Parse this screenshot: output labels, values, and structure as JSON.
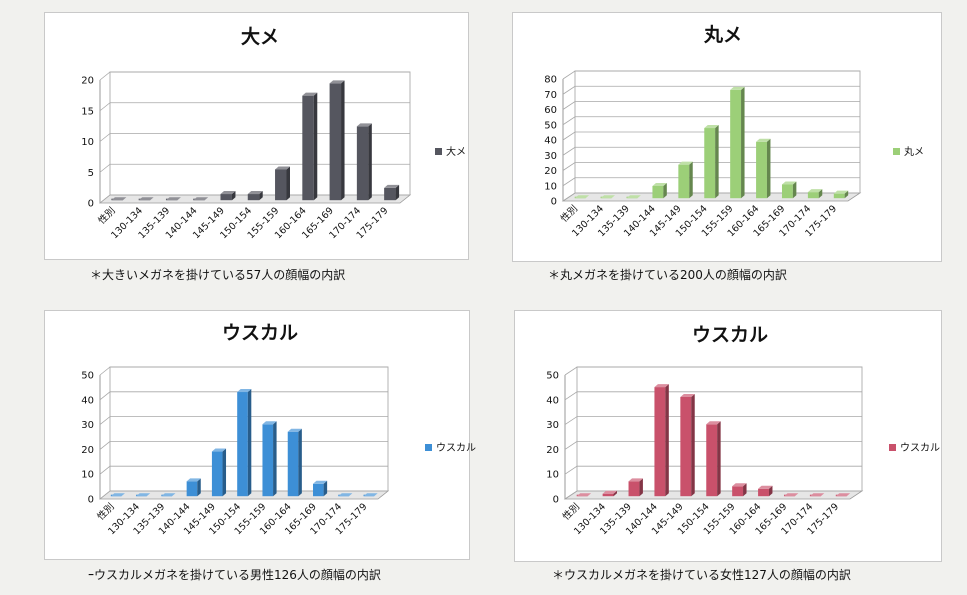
{
  "chart_data": [
    {
      "type": "bar",
      "title": "大メ",
      "categories": [
        "性別",
        "130-134",
        "135-139",
        "140-144",
        "145-149",
        "150-154",
        "155-159",
        "160-164",
        "165-169",
        "170-174",
        "175-179"
      ],
      "series": [
        {
          "name": "大メ",
          "values": [
            0,
            0,
            0,
            0,
            1,
            1,
            5,
            17,
            19,
            12,
            2
          ]
        }
      ],
      "ylim": [
        0,
        20
      ],
      "yticks": [
        0,
        5,
        10,
        15,
        20
      ],
      "color": "#55565f",
      "legend": "right",
      "grid": true,
      "caption": "＊大きいメガネを掛けている57人の顔幅の内訳"
    },
    {
      "type": "bar",
      "title": "丸メ",
      "categories": [
        "性別",
        "130-134",
        "135-139",
        "140-144",
        "145-149",
        "150-154",
        "155-159",
        "160-164",
        "165-169",
        "170-174",
        "175-179"
      ],
      "series": [
        {
          "name": "丸メ",
          "values": [
            0,
            0,
            0,
            8,
            22,
            46,
            71,
            37,
            9,
            4,
            3
          ]
        }
      ],
      "ylim": [
        0,
        80
      ],
      "yticks": [
        0,
        10,
        20,
        30,
        40,
        50,
        60,
        70,
        80
      ],
      "color": "#9ccf78",
      "legend": "right",
      "grid": true,
      "caption": "＊丸メガネを掛けている200人の顔幅の内訳"
    },
    {
      "type": "bar",
      "title": "ウスカル",
      "categories": [
        "性別",
        "130-134",
        "135-139",
        "140-144",
        "145-149",
        "150-154",
        "155-159",
        "160-164",
        "165-169",
        "170-174",
        "175-179"
      ],
      "series": [
        {
          "name": "ウスカル",
          "values": [
            0,
            0,
            0,
            6,
            18,
            42,
            29,
            26,
            5,
            0,
            0
          ]
        }
      ],
      "ylim": [
        0,
        50
      ],
      "yticks": [
        0,
        10,
        20,
        30,
        40,
        50
      ],
      "color": "#3d8fd6",
      "legend": "right",
      "grid": true,
      "caption": "ｰウスカルメガネを掛けている男性126人の顔幅の内訳"
    },
    {
      "type": "bar",
      "title": "ウスカル",
      "categories": [
        "性別",
        "130-134",
        "135-139",
        "140-144",
        "145-149",
        "150-154",
        "155-159",
        "160-164",
        "165-169",
        "170-174",
        "175-179"
      ],
      "series": [
        {
          "name": "ウスカル",
          "values": [
            0,
            1,
            6,
            44,
            40,
            29,
            4,
            3,
            0,
            0,
            0
          ]
        }
      ],
      "ylim": [
        0,
        50
      ],
      "yticks": [
        0,
        10,
        20,
        30,
        40,
        50
      ],
      "color": "#c9516b",
      "legend": "right",
      "grid": true,
      "caption": "＊ウスカルメガネを掛けている女性127人の顔幅の内訳"
    }
  ]
}
